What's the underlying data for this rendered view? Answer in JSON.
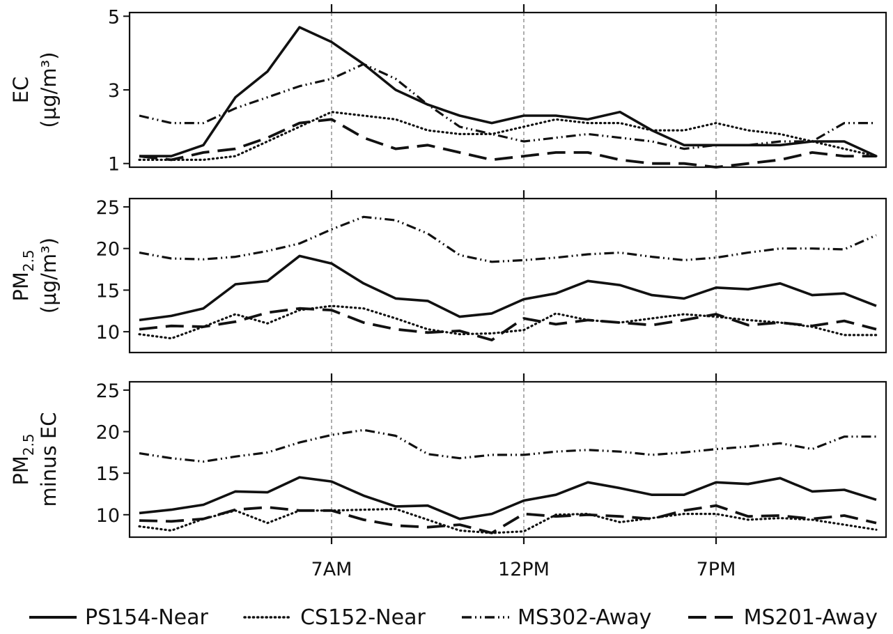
{
  "chart_data": [
    {
      "type": "line",
      "ylabel": "EC",
      "ylabel_unit_html": "(µg/m³)",
      "ylim": [
        0.9,
        5.1
      ],
      "yticks": [
        1,
        3,
        5
      ],
      "x": [
        0,
        1,
        2,
        3,
        4,
        5,
        6,
        7,
        8,
        9,
        10,
        11,
        12,
        13,
        14,
        15,
        16,
        17,
        18,
        19,
        20,
        21,
        22,
        23
      ],
      "grid": "vertical dashed at 7AM, 12PM, 7PM",
      "series": [
        {
          "name": "PS154-Near",
          "values": [
            1.2,
            1.2,
            1.5,
            2.8,
            3.5,
            4.7,
            4.3,
            3.7,
            3.0,
            2.6,
            2.3,
            2.1,
            2.3,
            2.3,
            2.2,
            2.4,
            1.9,
            1.5,
            1.5,
            1.5,
            1.5,
            1.6,
            1.6,
            1.2
          ]
        },
        {
          "name": "CS152-Near",
          "values": [
            1.1,
            1.1,
            1.1,
            1.2,
            1.6,
            2.0,
            2.4,
            2.3,
            2.2,
            1.9,
            1.8,
            1.8,
            2.0,
            2.2,
            2.1,
            2.1,
            1.9,
            1.9,
            2.1,
            1.9,
            1.8,
            1.6,
            1.4,
            1.2
          ]
        },
        {
          "name": "MS302-Away",
          "values": [
            2.3,
            2.1,
            2.1,
            2.5,
            2.8,
            3.1,
            3.3,
            3.7,
            3.3,
            2.6,
            2.0,
            1.8,
            1.6,
            1.7,
            1.8,
            1.7,
            1.6,
            1.4,
            1.5,
            1.5,
            1.6,
            1.6,
            2.1,
            2.1
          ]
        },
        {
          "name": "MS201-Away",
          "values": [
            1.2,
            1.1,
            1.3,
            1.4,
            1.7,
            2.1,
            2.2,
            1.7,
            1.4,
            1.5,
            1.3,
            1.1,
            1.2,
            1.3,
            1.3,
            1.1,
            1.0,
            1.0,
            0.9,
            1.0,
            1.1,
            1.3,
            1.2,
            1.2
          ]
        }
      ]
    },
    {
      "type": "line",
      "ylabel": "PM2.5",
      "ylabel_unit_html": "(µg/m³)",
      "ylim": [
        7.5,
        26
      ],
      "yticks": [
        10,
        15,
        20,
        25
      ],
      "x": [
        0,
        1,
        2,
        3,
        4,
        5,
        6,
        7,
        8,
        9,
        10,
        11,
        12,
        13,
        14,
        15,
        16,
        17,
        18,
        19,
        20,
        21,
        22,
        23
      ],
      "series": [
        {
          "name": "PS154-Near",
          "values": [
            11.4,
            11.9,
            12.8,
            15.7,
            16.1,
            19.1,
            18.2,
            15.8,
            14.0,
            13.7,
            11.8,
            12.2,
            13.9,
            14.6,
            16.1,
            15.6,
            14.4,
            14.0,
            15.3,
            15.1,
            15.8,
            14.4,
            14.6,
            13.1
          ]
        },
        {
          "name": "CS152-Near",
          "values": [
            9.7,
            9.2,
            10.6,
            12.1,
            11.0,
            12.6,
            13.1,
            12.8,
            11.6,
            10.3,
            9.7,
            9.8,
            10.2,
            12.2,
            11.4,
            11.1,
            11.6,
            12.1,
            11.8,
            11.4,
            11.1,
            10.6,
            9.6,
            9.6
          ]
        },
        {
          "name": "MS302-Away",
          "values": [
            19.5,
            18.8,
            18.7,
            19.0,
            19.7,
            20.6,
            22.3,
            23.8,
            23.4,
            21.8,
            19.2,
            18.4,
            18.6,
            18.9,
            19.3,
            19.5,
            19.0,
            18.6,
            18.9,
            19.5,
            20.0,
            20.0,
            19.9,
            21.6
          ]
        },
        {
          "name": "MS201-Away",
          "values": [
            10.3,
            10.7,
            10.6,
            11.2,
            12.3,
            12.8,
            12.6,
            11.1,
            10.3,
            9.9,
            10.1,
            9.0,
            11.6,
            10.9,
            11.4,
            11.1,
            10.8,
            11.4,
            12.1,
            10.8,
            11.1,
            10.7,
            11.3,
            10.3
          ]
        }
      ]
    },
    {
      "type": "line",
      "ylabel": "PM2.5",
      "ylabel_line2": "minus EC",
      "ylim": [
        7.3,
        26
      ],
      "yticks": [
        10,
        15,
        20,
        25
      ],
      "x": [
        0,
        1,
        2,
        3,
        4,
        5,
        6,
        7,
        8,
        9,
        10,
        11,
        12,
        13,
        14,
        15,
        16,
        17,
        18,
        19,
        20,
        21,
        22,
        23
      ],
      "xticks": [
        {
          "x": 6,
          "label": "7AM"
        },
        {
          "x": 12,
          "label": "12PM"
        },
        {
          "x": 18,
          "label": "7PM"
        }
      ],
      "series": [
        {
          "name": "PS154-Near",
          "values": [
            10.2,
            10.6,
            11.2,
            12.8,
            12.7,
            14.5,
            14.0,
            12.3,
            11.0,
            11.1,
            9.5,
            10.1,
            11.7,
            12.4,
            13.9,
            13.2,
            12.4,
            12.4,
            13.9,
            13.7,
            14.4,
            12.8,
            13.0,
            11.8
          ]
        },
        {
          "name": "CS152-Near",
          "values": [
            8.6,
            8.1,
            9.5,
            10.5,
            9.0,
            10.5,
            10.5,
            10.6,
            10.7,
            9.4,
            8.1,
            7.8,
            8.0,
            10.0,
            10.1,
            9.1,
            9.6,
            10.1,
            10.1,
            9.4,
            9.6,
            9.4,
            8.8,
            8.2
          ]
        },
        {
          "name": "MS302-Away",
          "values": [
            17.4,
            16.8,
            16.4,
            17.0,
            17.5,
            18.7,
            19.6,
            20.2,
            19.5,
            17.3,
            16.8,
            17.2,
            17.2,
            17.6,
            17.8,
            17.6,
            17.2,
            17.5,
            17.9,
            18.2,
            18.6,
            17.9,
            19.4,
            19.4
          ]
        },
        {
          "name": "MS201-Away",
          "values": [
            9.3,
            9.2,
            9.5,
            10.6,
            10.9,
            10.5,
            10.5,
            9.4,
            8.7,
            8.5,
            8.8,
            7.8,
            10.1,
            9.8,
            10.0,
            9.8,
            9.5,
            10.5,
            11.1,
            9.8,
            9.9,
            9.5,
            9.9,
            9.0
          ]
        }
      ]
    }
  ],
  "legend": [
    {
      "label": "PS154-Near",
      "dash": "solid"
    },
    {
      "label": "CS152-Near",
      "dash": "dotted"
    },
    {
      "label": "MS302-Away",
      "dash": "dashdotdot"
    },
    {
      "label": "MS201-Away",
      "dash": "dashed"
    }
  ]
}
